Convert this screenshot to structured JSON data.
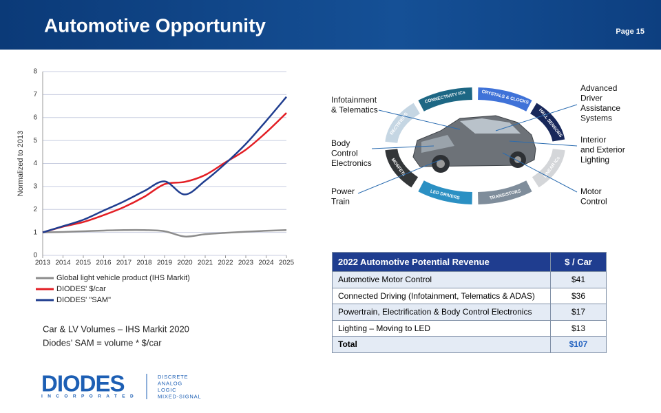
{
  "header": {
    "title": "Automotive Opportunity",
    "page": "Page 15"
  },
  "chart_data": {
    "type": "line",
    "y_label": "Normalized to 2013",
    "x": [
      2013,
      2014,
      2015,
      2016,
      2017,
      2018,
      2019,
      2020,
      2021,
      2022,
      2023,
      2024,
      2025
    ],
    "series": [
      {
        "name": "Global light vehicle product (IHS Markit)",
        "color": "#8c8c8c",
        "values": [
          1,
          1.02,
          1.05,
          1.08,
          1.1,
          1.1,
          1.05,
          0.82,
          0.92,
          0.98,
          1.03,
          1.07,
          1.1
        ]
      },
      {
        "name": "DIODES' $/car",
        "color": "#e31e24",
        "values": [
          1,
          1.25,
          1.45,
          1.75,
          2.1,
          2.55,
          3.1,
          3.2,
          3.5,
          4.05,
          4.6,
          5.35,
          6.2
        ]
      },
      {
        "name": "DIODES' \"SAM\"",
        "color": "#1f3d8f",
        "values": [
          1,
          1.27,
          1.55,
          1.95,
          2.35,
          2.8,
          3.22,
          2.65,
          3.25,
          4.0,
          4.85,
          5.85,
          6.9
        ]
      }
    ],
    "xlim": [
      2013,
      2025
    ],
    "xticks": [
      2013,
      2014,
      2015,
      2016,
      2017,
      2018,
      2019,
      2020,
      2021,
      2022,
      2023,
      2024,
      2025
    ],
    "ylim": [
      0,
      8
    ],
    "yticks": [
      0,
      1,
      2,
      3,
      4,
      5,
      6,
      7,
      8
    ],
    "grid": true
  },
  "notes": [
    "Car & LV Volumes – IHS Markit 2020",
    "Diodes’ SAM = volume * $/car"
  ],
  "diagram": {
    "segments": [
      {
        "text": "CONNECTIVITY ICs",
        "color": "#1d6784"
      },
      {
        "text": "CRYSTALS & CLOCKS",
        "color": "#3f72d8"
      },
      {
        "text": "HALL SENSORS",
        "color": "#17275a"
      },
      {
        "text": "LINEAR ICs",
        "color": "#d4d6d9"
      },
      {
        "text": "TRANSISTORS",
        "color": "#7f8d9b"
      },
      {
        "text": "LED DRIVERS",
        "color": "#2b90c3"
      },
      {
        "text": "MOSFETs",
        "color": "#333638"
      },
      {
        "text": "RECTIFIERS",
        "color": "#c5d6e3"
      }
    ],
    "labels": [
      {
        "lines": [
          "Infotainment",
          "& Telematics"
        ]
      },
      {
        "lines": [
          "Body",
          "Control",
          "Electronics"
        ]
      },
      {
        "lines": [
          "Power",
          "Train"
        ]
      },
      {
        "lines": [
          "Advanced",
          "Driver",
          "Assistance",
          "Systems"
        ]
      },
      {
        "lines": [
          "Interior",
          "and Exterior",
          "Lighting"
        ]
      },
      {
        "lines": [
          "Motor",
          "Control"
        ]
      }
    ]
  },
  "table": {
    "header": [
      "2022 Automotive Potential Revenue",
      "$ / Car"
    ],
    "rows": [
      [
        "Automotive Motor Control",
        "$41"
      ],
      [
        "Connected Driving (Infotainment, Telematics & ADAS)",
        "$36"
      ],
      [
        "Powertrain, Electrification & Body Control Electronics",
        "$17"
      ],
      [
        "Lighting – Moving to LED",
        "$13"
      ],
      [
        "Total",
        "$107"
      ]
    ]
  },
  "footer": {
    "logo": "DIODES",
    "logo_sub": "INCORPORATED",
    "tagline": [
      "DISCRETE",
      "ANALOG",
      "LOGIC",
      "MIXED-SIGNAL"
    ]
  }
}
